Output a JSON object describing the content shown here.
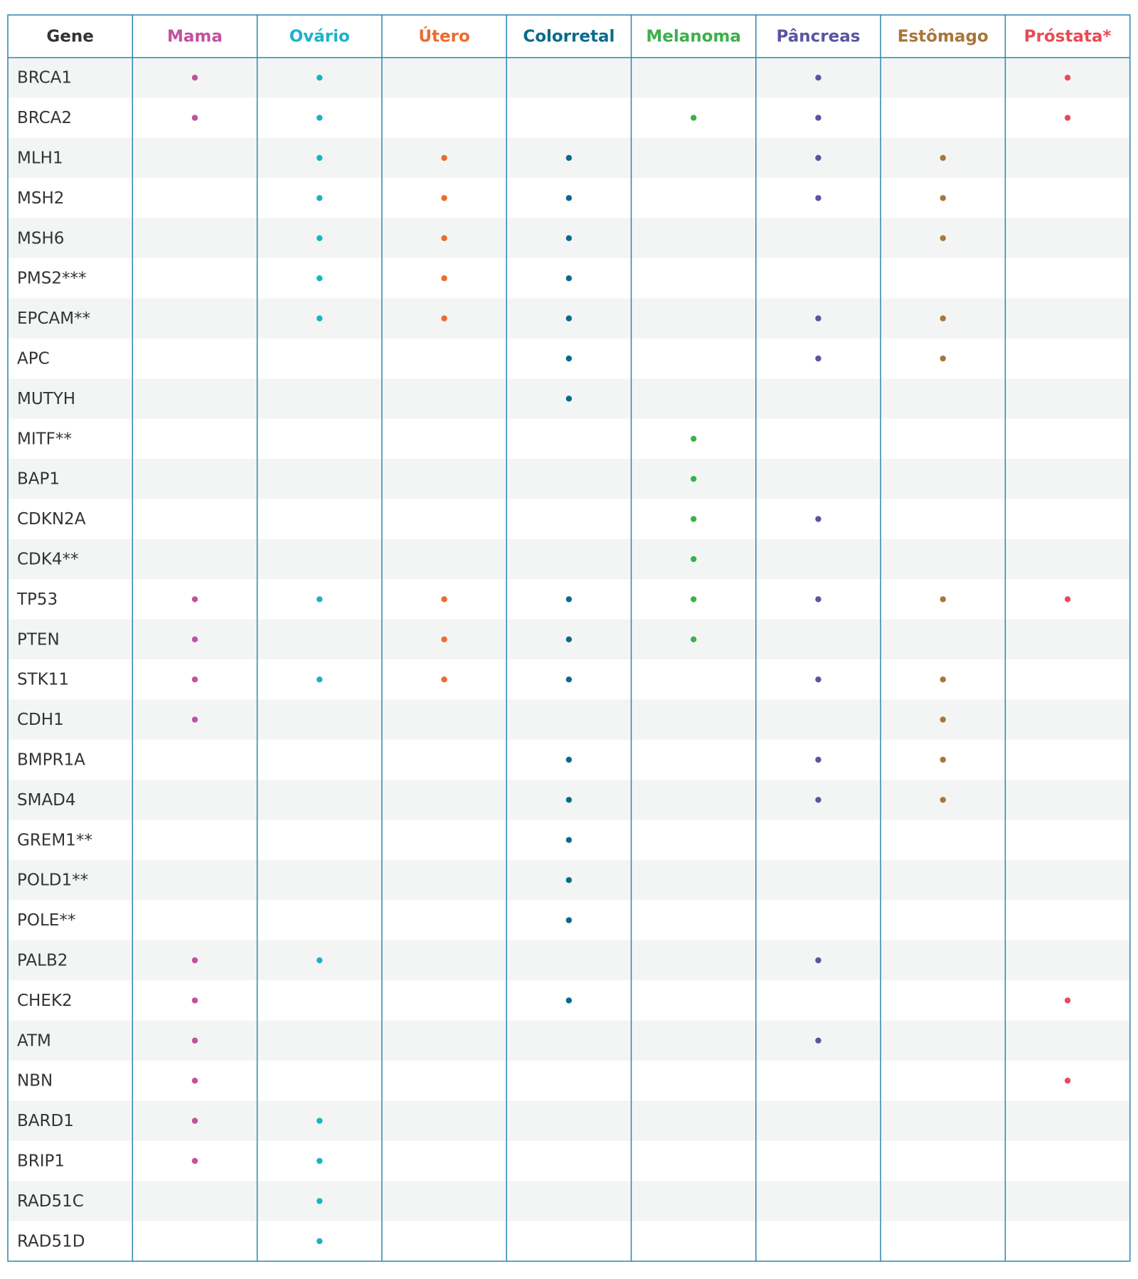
{
  "table": {
    "header": [
      "Gene",
      "Mama",
      "Ovário",
      "Útero",
      "Colorretal",
      "Melanoma",
      "Pâncreas",
      "Estômago",
      "Próstata*"
    ],
    "colors": [
      "#333333",
      "#c2519e",
      "#1bb2c9",
      "#ec6b2d",
      "#0b6a8a",
      "#3cb04b",
      "#5a55a0",
      "#a8763a",
      "#e94b55"
    ],
    "rows": [
      {
        "gene": "BRCA1",
        "marks": [
          1,
          1,
          0,
          0,
          0,
          1,
          0,
          1
        ]
      },
      {
        "gene": "BRCA2",
        "marks": [
          1,
          1,
          0,
          0,
          1,
          1,
          0,
          1
        ]
      },
      {
        "gene": "MLH1",
        "marks": [
          0,
          1,
          1,
          1,
          0,
          1,
          1,
          0
        ]
      },
      {
        "gene": "MSH2",
        "marks": [
          0,
          1,
          1,
          1,
          0,
          1,
          1,
          0
        ]
      },
      {
        "gene": "MSH6",
        "marks": [
          0,
          1,
          1,
          1,
          0,
          0,
          1,
          0
        ]
      },
      {
        "gene": "PMS2***",
        "marks": [
          0,
          1,
          1,
          1,
          0,
          0,
          0,
          0
        ]
      },
      {
        "gene": "EPCAM**",
        "marks": [
          0,
          1,
          1,
          1,
          0,
          1,
          1,
          0
        ]
      },
      {
        "gene": "APC",
        "marks": [
          0,
          0,
          0,
          1,
          0,
          1,
          1,
          0
        ]
      },
      {
        "gene": "MUTYH",
        "marks": [
          0,
          0,
          0,
          1,
          0,
          0,
          0,
          0
        ]
      },
      {
        "gene": "MITF**",
        "marks": [
          0,
          0,
          0,
          0,
          1,
          0,
          0,
          0
        ]
      },
      {
        "gene": "BAP1",
        "marks": [
          0,
          0,
          0,
          0,
          1,
          0,
          0,
          0
        ]
      },
      {
        "gene": "CDKN2A",
        "marks": [
          0,
          0,
          0,
          0,
          1,
          1,
          0,
          0
        ]
      },
      {
        "gene": "CDK4**",
        "marks": [
          0,
          0,
          0,
          0,
          1,
          0,
          0,
          0
        ]
      },
      {
        "gene": "TP53",
        "marks": [
          1,
          1,
          1,
          1,
          1,
          1,
          1,
          1
        ]
      },
      {
        "gene": "PTEN",
        "marks": [
          1,
          0,
          1,
          1,
          1,
          0,
          0,
          0
        ]
      },
      {
        "gene": "STK11",
        "marks": [
          1,
          1,
          1,
          1,
          0,
          1,
          1,
          0
        ]
      },
      {
        "gene": "CDH1",
        "marks": [
          1,
          0,
          0,
          0,
          0,
          0,
          1,
          0
        ]
      },
      {
        "gene": "BMPR1A",
        "marks": [
          0,
          0,
          0,
          1,
          0,
          1,
          1,
          0
        ]
      },
      {
        "gene": "SMAD4",
        "marks": [
          0,
          0,
          0,
          1,
          0,
          1,
          1,
          0
        ]
      },
      {
        "gene": "GREM1**",
        "marks": [
          0,
          0,
          0,
          1,
          0,
          0,
          0,
          0
        ]
      },
      {
        "gene": "POLD1**",
        "marks": [
          0,
          0,
          0,
          1,
          0,
          0,
          0,
          0
        ]
      },
      {
        "gene": "POLE**",
        "marks": [
          0,
          0,
          0,
          1,
          0,
          0,
          0,
          0
        ]
      },
      {
        "gene": "PALB2",
        "marks": [
          1,
          1,
          0,
          0,
          0,
          1,
          0,
          0
        ]
      },
      {
        "gene": "CHEK2",
        "marks": [
          1,
          0,
          0,
          1,
          0,
          0,
          0,
          1
        ]
      },
      {
        "gene": "ATM",
        "marks": [
          1,
          0,
          0,
          0,
          0,
          1,
          0,
          0
        ]
      },
      {
        "gene": "NBN",
        "marks": [
          1,
          0,
          0,
          0,
          0,
          0,
          0,
          1
        ]
      },
      {
        "gene": "BARD1",
        "marks": [
          1,
          1,
          0,
          0,
          0,
          0,
          0,
          0
        ]
      },
      {
        "gene": "BRIP1",
        "marks": [
          1,
          1,
          0,
          0,
          0,
          0,
          0,
          0
        ]
      },
      {
        "gene": "RAD51C",
        "marks": [
          0,
          1,
          0,
          0,
          0,
          0,
          0,
          0
        ]
      },
      {
        "gene": "RAD51D",
        "marks": [
          0,
          1,
          0,
          0,
          0,
          0,
          0,
          0
        ]
      }
    ]
  }
}
